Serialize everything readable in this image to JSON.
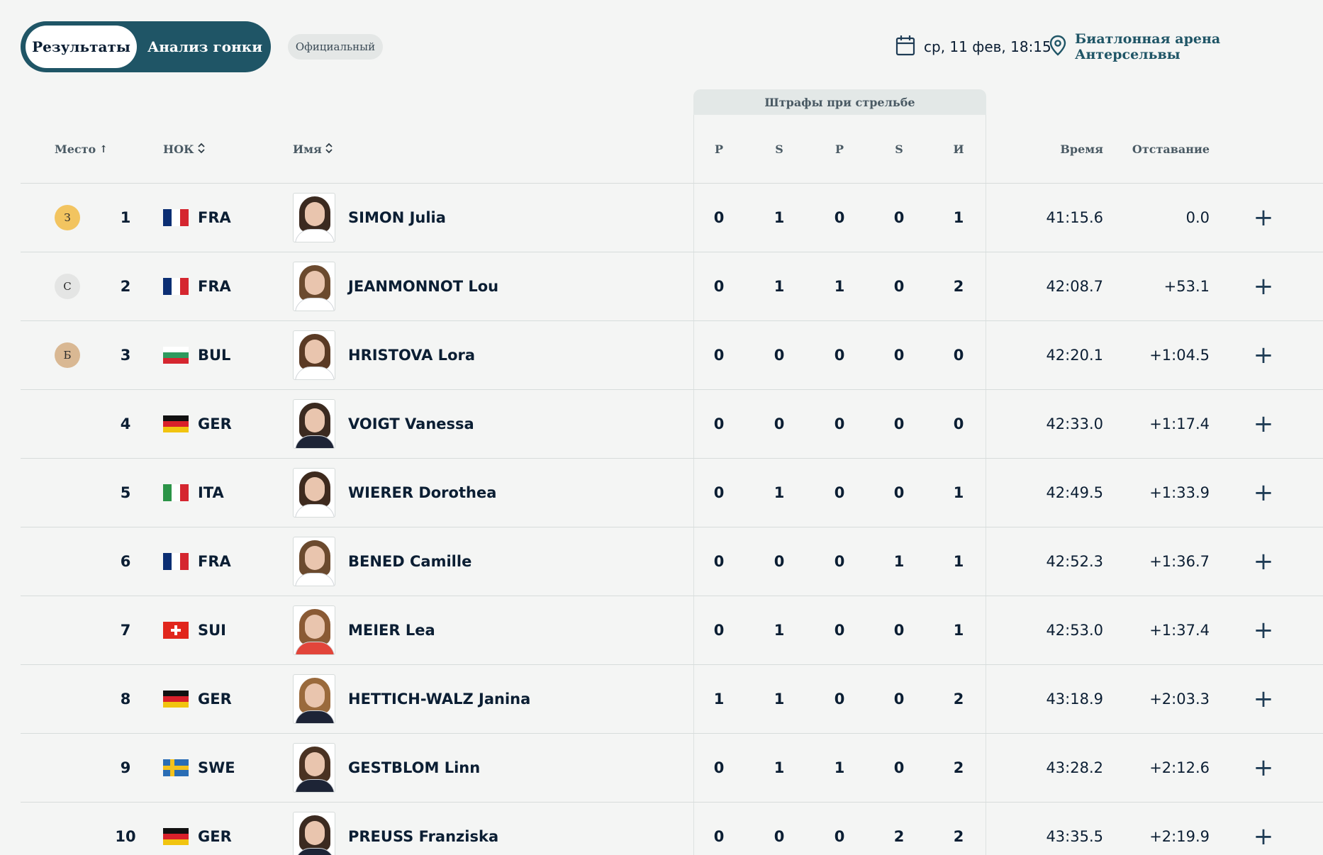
{
  "tabs": {
    "results": "Результаты",
    "analysis": "Анализ гонки"
  },
  "status": "Официальный",
  "event": {
    "date": "ср, 11 фев, 18:15",
    "venue": "Биатлонная арена Антерсельвы"
  },
  "table": {
    "penalty_group": "Штрафы при стрельбе",
    "headers": {
      "place": "Место",
      "noc": "НОК",
      "name": "Имя",
      "shoot": [
        "P",
        "S",
        "P",
        "S",
        "И"
      ],
      "time": "Время",
      "behind": "Отставание"
    },
    "rows": [
      {
        "medal": "З",
        "medal_color": "#f2c460",
        "rank": "1",
        "noc": "FRA",
        "name": "SIMON Julia",
        "pen": [
          "0",
          "1",
          "0",
          "0",
          "1"
        ],
        "time": "41:15.6",
        "behind": "0.0"
      },
      {
        "medal": "С",
        "medal_color": "#e4e5e4",
        "rank": "2",
        "noc": "FRA",
        "name": "JEANMONNOT Lou",
        "pen": [
          "0",
          "1",
          "1",
          "0",
          "2"
        ],
        "time": "42:08.7",
        "behind": "+53.1"
      },
      {
        "medal": "Б",
        "medal_color": "#d9b893",
        "rank": "3",
        "noc": "BUL",
        "name": "HRISTOVA Lora",
        "pen": [
          "0",
          "0",
          "0",
          "0",
          "0"
        ],
        "time": "42:20.1",
        "behind": "+1:04.5"
      },
      {
        "rank": "4",
        "noc": "GER",
        "name": "VOIGT Vanessa",
        "pen": [
          "0",
          "0",
          "0",
          "0",
          "0"
        ],
        "time": "42:33.0",
        "behind": "+1:17.4"
      },
      {
        "rank": "5",
        "noc": "ITA",
        "name": "WIERER Dorothea",
        "pen": [
          "0",
          "1",
          "0",
          "0",
          "1"
        ],
        "time": "42:49.5",
        "behind": "+1:33.9"
      },
      {
        "rank": "6",
        "noc": "FRA",
        "name": "BENED Camille",
        "pen": [
          "0",
          "0",
          "0",
          "1",
          "1"
        ],
        "time": "42:52.3",
        "behind": "+1:36.7"
      },
      {
        "rank": "7",
        "noc": "SUI",
        "name": "MEIER Lea",
        "pen": [
          "0",
          "1",
          "0",
          "0",
          "1"
        ],
        "time": "42:53.0",
        "behind": "+1:37.4"
      },
      {
        "rank": "8",
        "noc": "GER",
        "name": "HETTICH-WALZ Janina",
        "pen": [
          "1",
          "1",
          "0",
          "0",
          "2"
        ],
        "time": "43:18.9",
        "behind": "+2:03.3"
      },
      {
        "rank": "9",
        "noc": "SWE",
        "name": "GESTBLOM Linn",
        "pen": [
          "0",
          "1",
          "1",
          "0",
          "2"
        ],
        "time": "43:28.2",
        "behind": "+2:12.6"
      },
      {
        "rank": "10",
        "noc": "GER",
        "name": "PREUSS Franziska",
        "pen": [
          "0",
          "0",
          "0",
          "2",
          "2"
        ],
        "time": "43:35.5",
        "behind": "+2:19.9"
      }
    ]
  },
  "colors": {
    "accent": "#1f5566",
    "text": "#0b1e33",
    "background": "#f4f5f4"
  },
  "icons": {
    "calendar": "calendar-icon",
    "location": "location-pin-icon",
    "expand": "plus-icon",
    "sort": "sort-icon"
  }
}
